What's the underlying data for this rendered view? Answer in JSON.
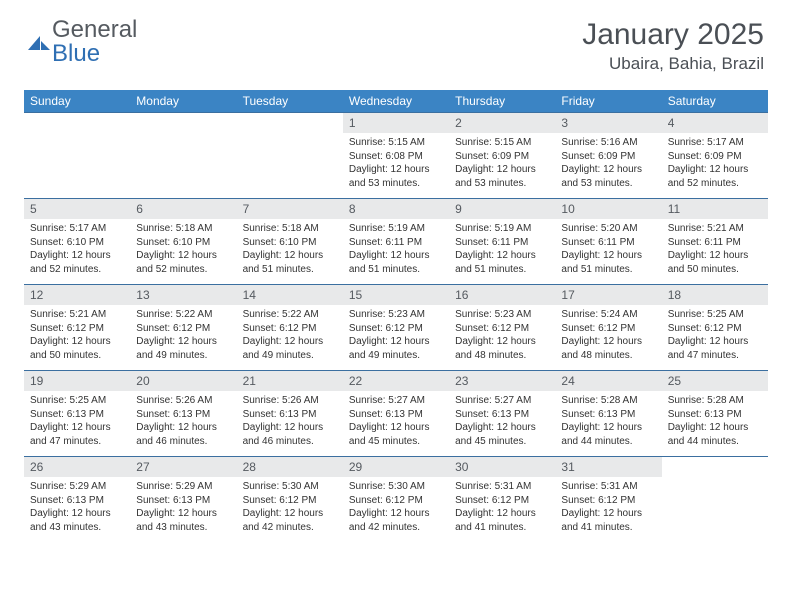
{
  "logo": {
    "text_general": "General",
    "text_blue": "Blue"
  },
  "title": {
    "month": "January 2025",
    "location": "Ubaira, Bahia, Brazil"
  },
  "colors": {
    "header_bg": "#3b84c4",
    "header_fg": "#ffffff",
    "daynum_bg": "#e8e9ea",
    "rule": "#3b6fa0",
    "logo_gray": "#555a60",
    "logo_blue": "#2f6fb3"
  },
  "weekdays": [
    "Sunday",
    "Monday",
    "Tuesday",
    "Wednesday",
    "Thursday",
    "Friday",
    "Saturday"
  ],
  "first_weekday_index": 3,
  "days": [
    {
      "n": 1,
      "sunrise": "5:15 AM",
      "sunset": "6:08 PM",
      "daylight": "12 hours and 53 minutes."
    },
    {
      "n": 2,
      "sunrise": "5:15 AM",
      "sunset": "6:09 PM",
      "daylight": "12 hours and 53 minutes."
    },
    {
      "n": 3,
      "sunrise": "5:16 AM",
      "sunset": "6:09 PM",
      "daylight": "12 hours and 53 minutes."
    },
    {
      "n": 4,
      "sunrise": "5:17 AM",
      "sunset": "6:09 PM",
      "daylight": "12 hours and 52 minutes."
    },
    {
      "n": 5,
      "sunrise": "5:17 AM",
      "sunset": "6:10 PM",
      "daylight": "12 hours and 52 minutes."
    },
    {
      "n": 6,
      "sunrise": "5:18 AM",
      "sunset": "6:10 PM",
      "daylight": "12 hours and 52 minutes."
    },
    {
      "n": 7,
      "sunrise": "5:18 AM",
      "sunset": "6:10 PM",
      "daylight": "12 hours and 51 minutes."
    },
    {
      "n": 8,
      "sunrise": "5:19 AM",
      "sunset": "6:11 PM",
      "daylight": "12 hours and 51 minutes."
    },
    {
      "n": 9,
      "sunrise": "5:19 AM",
      "sunset": "6:11 PM",
      "daylight": "12 hours and 51 minutes."
    },
    {
      "n": 10,
      "sunrise": "5:20 AM",
      "sunset": "6:11 PM",
      "daylight": "12 hours and 51 minutes."
    },
    {
      "n": 11,
      "sunrise": "5:21 AM",
      "sunset": "6:11 PM",
      "daylight": "12 hours and 50 minutes."
    },
    {
      "n": 12,
      "sunrise": "5:21 AM",
      "sunset": "6:12 PM",
      "daylight": "12 hours and 50 minutes."
    },
    {
      "n": 13,
      "sunrise": "5:22 AM",
      "sunset": "6:12 PM",
      "daylight": "12 hours and 49 minutes."
    },
    {
      "n": 14,
      "sunrise": "5:22 AM",
      "sunset": "6:12 PM",
      "daylight": "12 hours and 49 minutes."
    },
    {
      "n": 15,
      "sunrise": "5:23 AM",
      "sunset": "6:12 PM",
      "daylight": "12 hours and 49 minutes."
    },
    {
      "n": 16,
      "sunrise": "5:23 AM",
      "sunset": "6:12 PM",
      "daylight": "12 hours and 48 minutes."
    },
    {
      "n": 17,
      "sunrise": "5:24 AM",
      "sunset": "6:12 PM",
      "daylight": "12 hours and 48 minutes."
    },
    {
      "n": 18,
      "sunrise": "5:25 AM",
      "sunset": "6:12 PM",
      "daylight": "12 hours and 47 minutes."
    },
    {
      "n": 19,
      "sunrise": "5:25 AM",
      "sunset": "6:13 PM",
      "daylight": "12 hours and 47 minutes."
    },
    {
      "n": 20,
      "sunrise": "5:26 AM",
      "sunset": "6:13 PM",
      "daylight": "12 hours and 46 minutes."
    },
    {
      "n": 21,
      "sunrise": "5:26 AM",
      "sunset": "6:13 PM",
      "daylight": "12 hours and 46 minutes."
    },
    {
      "n": 22,
      "sunrise": "5:27 AM",
      "sunset": "6:13 PM",
      "daylight": "12 hours and 45 minutes."
    },
    {
      "n": 23,
      "sunrise": "5:27 AM",
      "sunset": "6:13 PM",
      "daylight": "12 hours and 45 minutes."
    },
    {
      "n": 24,
      "sunrise": "5:28 AM",
      "sunset": "6:13 PM",
      "daylight": "12 hours and 44 minutes."
    },
    {
      "n": 25,
      "sunrise": "5:28 AM",
      "sunset": "6:13 PM",
      "daylight": "12 hours and 44 minutes."
    },
    {
      "n": 26,
      "sunrise": "5:29 AM",
      "sunset": "6:13 PM",
      "daylight": "12 hours and 43 minutes."
    },
    {
      "n": 27,
      "sunrise": "5:29 AM",
      "sunset": "6:13 PM",
      "daylight": "12 hours and 43 minutes."
    },
    {
      "n": 28,
      "sunrise": "5:30 AM",
      "sunset": "6:12 PM",
      "daylight": "12 hours and 42 minutes."
    },
    {
      "n": 29,
      "sunrise": "5:30 AM",
      "sunset": "6:12 PM",
      "daylight": "12 hours and 42 minutes."
    },
    {
      "n": 30,
      "sunrise": "5:31 AM",
      "sunset": "6:12 PM",
      "daylight": "12 hours and 41 minutes."
    },
    {
      "n": 31,
      "sunrise": "5:31 AM",
      "sunset": "6:12 PM",
      "daylight": "12 hours and 41 minutes."
    }
  ],
  "labels": {
    "sunrise": "Sunrise:",
    "sunset": "Sunset:",
    "daylight": "Daylight:"
  }
}
